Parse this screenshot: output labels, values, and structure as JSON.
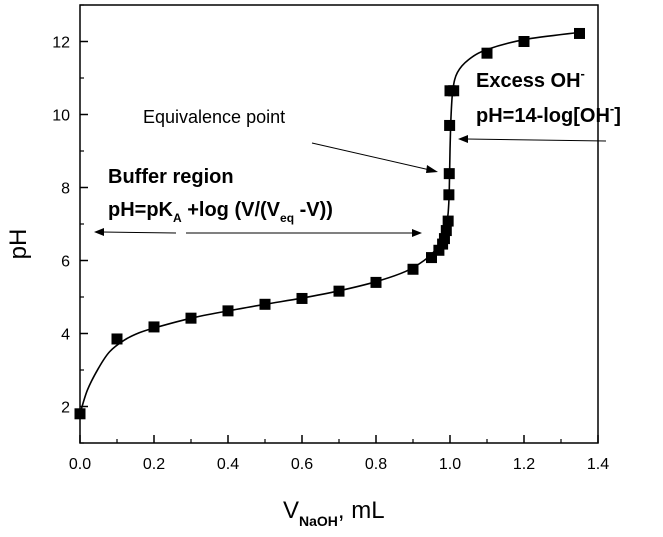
{
  "chart_data": {
    "type": "scatter",
    "xlabel_main": "V",
    "xlabel_sub": "NaOH",
    "xlabel_unit": ", mL",
    "ylabel": "pH",
    "xlim": [
      0.0,
      1.4
    ],
    "ylim": [
      1.0,
      13.0
    ],
    "x_ticks": [
      {
        "value": 0.0,
        "label": "0.0"
      },
      {
        "value": 0.2,
        "label": "0.2"
      },
      {
        "value": 0.4,
        "label": "0.4"
      },
      {
        "value": 0.6,
        "label": "0.6"
      },
      {
        "value": 0.8,
        "label": "0.8"
      },
      {
        "value": 1.0,
        "label": "1.0"
      },
      {
        "value": 1.2,
        "label": "1.2"
      },
      {
        "value": 1.4,
        "label": "1.4"
      }
    ],
    "y_ticks": [
      {
        "value": 2,
        "label": "2"
      },
      {
        "value": 4,
        "label": "4"
      },
      {
        "value": 6,
        "label": "6"
      },
      {
        "value": 8,
        "label": "8"
      },
      {
        "value": 10,
        "label": "10"
      },
      {
        "value": 12,
        "label": "12"
      }
    ],
    "grid": false,
    "series": [
      {
        "marker": "square",
        "color": "#000000",
        "x": [
          0.0,
          0.1,
          0.2,
          0.3,
          0.4,
          0.5,
          0.6,
          0.7,
          0.8,
          0.9,
          0.95,
          0.97,
          0.98,
          0.985,
          0.99,
          0.995,
          0.997,
          0.998,
          0.999,
          1.0,
          1.01,
          1.1,
          1.2,
          1.35
        ],
        "y": [
          1.8,
          3.85,
          4.18,
          4.42,
          4.62,
          4.8,
          4.96,
          5.16,
          5.4,
          5.76,
          6.08,
          6.28,
          6.45,
          6.6,
          6.82,
          7.08,
          7.8,
          8.38,
          9.7,
          10.65,
          10.65,
          11.68,
          12.0,
          12.22
        ]
      }
    ],
    "curve": {
      "x": [
        0.0,
        0.02,
        0.05,
        0.08,
        0.12,
        0.16,
        0.2,
        0.3,
        0.4,
        0.5,
        0.6,
        0.7,
        0.8,
        0.88,
        0.93,
        0.96,
        0.98,
        0.99,
        0.995,
        0.998,
        1.0,
        1.003,
        1.008,
        1.02,
        1.05,
        1.1,
        1.2,
        1.35
      ],
      "y": [
        1.8,
        2.45,
        3.05,
        3.5,
        3.82,
        4.02,
        4.15,
        4.42,
        4.62,
        4.8,
        4.97,
        5.17,
        5.42,
        5.7,
        6.0,
        6.28,
        6.6,
        6.95,
        7.3,
        7.9,
        9.0,
        10.0,
        10.7,
        11.15,
        11.5,
        11.78,
        12.05,
        12.25
      ]
    },
    "annotations": {
      "equivalence": "Equivalence point",
      "excess_main": "Excess OH",
      "excess_sup": "-",
      "excess_formula": "pH=14-log[OH",
      "excess_formula_sup": "-",
      "excess_formula_close": "]",
      "buffer": "Buffer region",
      "buffer_formula_a": "pH=pK",
      "buffer_formula_a_sub": "A",
      "buffer_formula_b": " +log (V/(V",
      "buffer_formula_b_sub": "eq",
      "buffer_formula_c": " -V))"
    }
  }
}
